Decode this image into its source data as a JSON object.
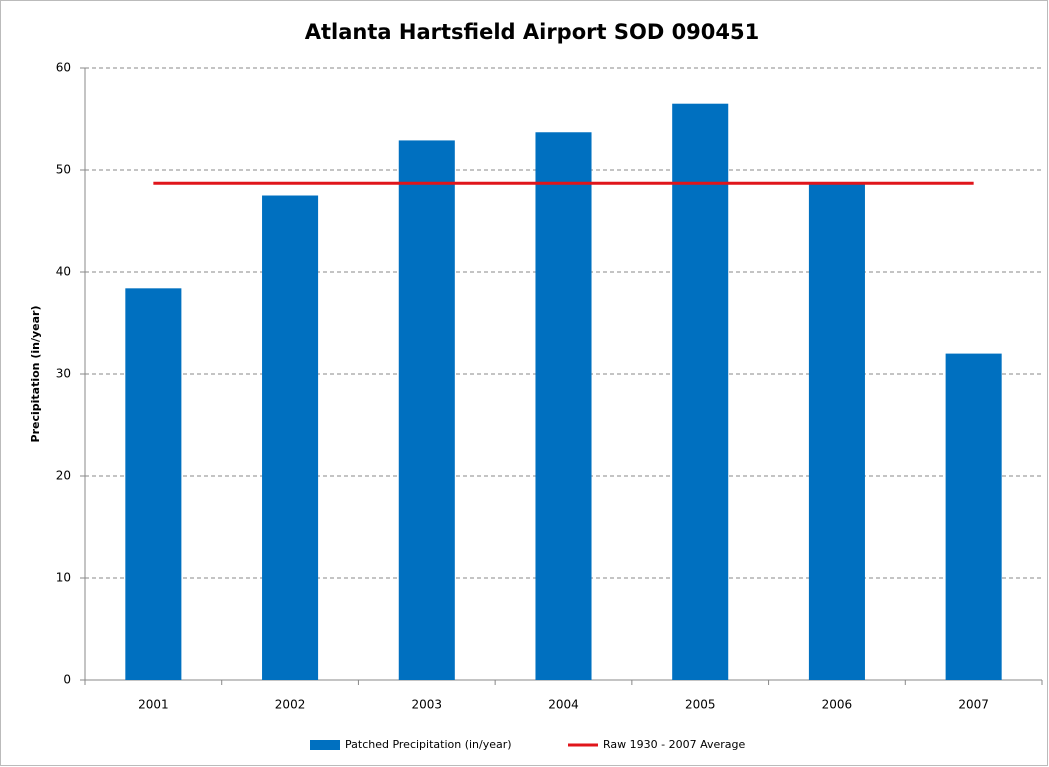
{
  "chart_data": {
    "type": "bar",
    "title": "Atlanta Hartsfield Airport SOD 090451",
    "ylabel": "Precipitation (in/year)",
    "categories": [
      "2001",
      "2002",
      "2003",
      "2004",
      "2005",
      "2006",
      "2007"
    ],
    "series": [
      {
        "name": "Patched Precipitation (in/year)",
        "color": "#0070c0",
        "type": "bar",
        "values": [
          38.4,
          47.5,
          52.9,
          53.7,
          56.5,
          48.7,
          32.0
        ]
      },
      {
        "name": "Raw 1930 - 2007 Average",
        "color": "#e0151b",
        "type": "line",
        "values": [
          48.7,
          48.7,
          48.7,
          48.7,
          48.7,
          48.7,
          48.7
        ]
      }
    ],
    "ylim": [
      0,
      60
    ],
    "yticks": [
      0,
      10,
      20,
      30,
      40,
      50,
      60
    ],
    "grid": true,
    "legend": "bottom"
  }
}
